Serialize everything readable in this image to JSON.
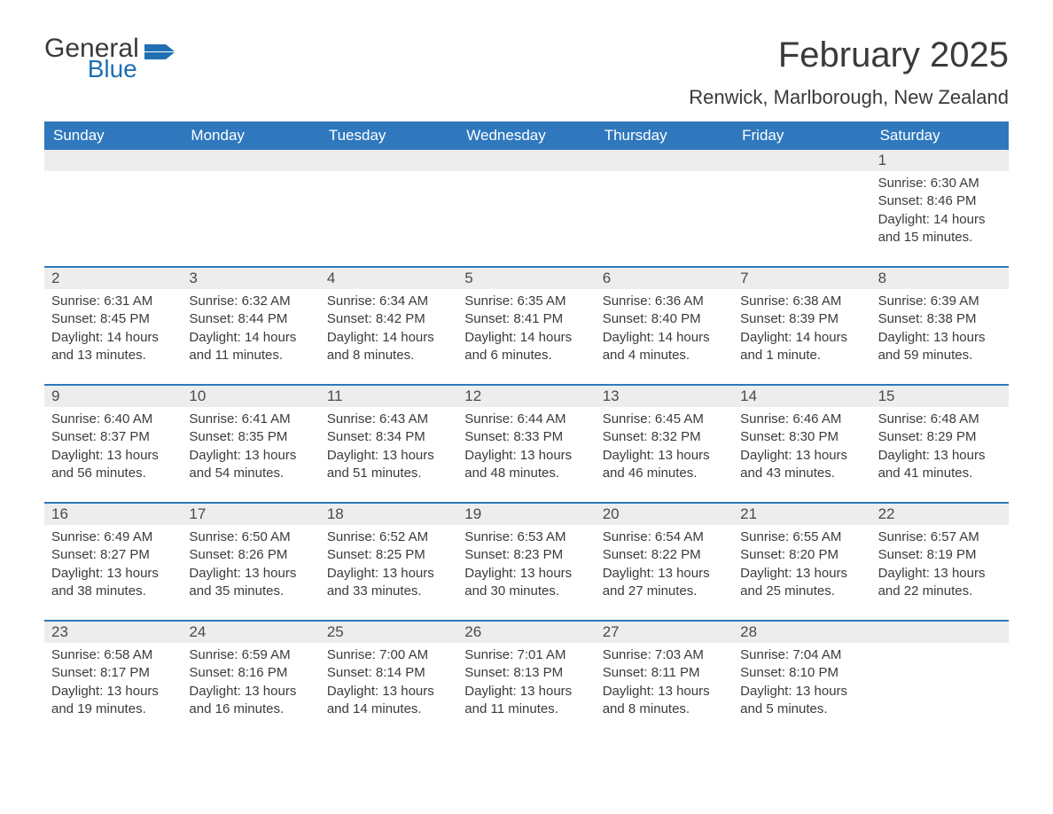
{
  "logo": {
    "word1": "General",
    "word2": "Blue",
    "flag_color": "#1f6fb2"
  },
  "title": "February 2025",
  "location": "Renwick, Marlborough, New Zealand",
  "colors": {
    "header_bg": "#2f78bd",
    "header_text": "#ffffff",
    "daynum_bg": "#ededed",
    "body_text": "#3b3b3b",
    "rule": "#2f78bd",
    "page_bg": "#ffffff"
  },
  "day_headers": [
    "Sunday",
    "Monday",
    "Tuesday",
    "Wednesday",
    "Thursday",
    "Friday",
    "Saturday"
  ],
  "weeks": [
    [
      {
        "n": "",
        "sunrise": "",
        "sunset": "",
        "daylight": ""
      },
      {
        "n": "",
        "sunrise": "",
        "sunset": "",
        "daylight": ""
      },
      {
        "n": "",
        "sunrise": "",
        "sunset": "",
        "daylight": ""
      },
      {
        "n": "",
        "sunrise": "",
        "sunset": "",
        "daylight": ""
      },
      {
        "n": "",
        "sunrise": "",
        "sunset": "",
        "daylight": ""
      },
      {
        "n": "",
        "sunrise": "",
        "sunset": "",
        "daylight": ""
      },
      {
        "n": "1",
        "sunrise": "Sunrise: 6:30 AM",
        "sunset": "Sunset: 8:46 PM",
        "daylight": "Daylight: 14 hours and 15 minutes."
      }
    ],
    [
      {
        "n": "2",
        "sunrise": "Sunrise: 6:31 AM",
        "sunset": "Sunset: 8:45 PM",
        "daylight": "Daylight: 14 hours and 13 minutes."
      },
      {
        "n": "3",
        "sunrise": "Sunrise: 6:32 AM",
        "sunset": "Sunset: 8:44 PM",
        "daylight": "Daylight: 14 hours and 11 minutes."
      },
      {
        "n": "4",
        "sunrise": "Sunrise: 6:34 AM",
        "sunset": "Sunset: 8:42 PM",
        "daylight": "Daylight: 14 hours and 8 minutes."
      },
      {
        "n": "5",
        "sunrise": "Sunrise: 6:35 AM",
        "sunset": "Sunset: 8:41 PM",
        "daylight": "Daylight: 14 hours and 6 minutes."
      },
      {
        "n": "6",
        "sunrise": "Sunrise: 6:36 AM",
        "sunset": "Sunset: 8:40 PM",
        "daylight": "Daylight: 14 hours and 4 minutes."
      },
      {
        "n": "7",
        "sunrise": "Sunrise: 6:38 AM",
        "sunset": "Sunset: 8:39 PM",
        "daylight": "Daylight: 14 hours and 1 minute."
      },
      {
        "n": "8",
        "sunrise": "Sunrise: 6:39 AM",
        "sunset": "Sunset: 8:38 PM",
        "daylight": "Daylight: 13 hours and 59 minutes."
      }
    ],
    [
      {
        "n": "9",
        "sunrise": "Sunrise: 6:40 AM",
        "sunset": "Sunset: 8:37 PM",
        "daylight": "Daylight: 13 hours and 56 minutes."
      },
      {
        "n": "10",
        "sunrise": "Sunrise: 6:41 AM",
        "sunset": "Sunset: 8:35 PM",
        "daylight": "Daylight: 13 hours and 54 minutes."
      },
      {
        "n": "11",
        "sunrise": "Sunrise: 6:43 AM",
        "sunset": "Sunset: 8:34 PM",
        "daylight": "Daylight: 13 hours and 51 minutes."
      },
      {
        "n": "12",
        "sunrise": "Sunrise: 6:44 AM",
        "sunset": "Sunset: 8:33 PM",
        "daylight": "Daylight: 13 hours and 48 minutes."
      },
      {
        "n": "13",
        "sunrise": "Sunrise: 6:45 AM",
        "sunset": "Sunset: 8:32 PM",
        "daylight": "Daylight: 13 hours and 46 minutes."
      },
      {
        "n": "14",
        "sunrise": "Sunrise: 6:46 AM",
        "sunset": "Sunset: 8:30 PM",
        "daylight": "Daylight: 13 hours and 43 minutes."
      },
      {
        "n": "15",
        "sunrise": "Sunrise: 6:48 AM",
        "sunset": "Sunset: 8:29 PM",
        "daylight": "Daylight: 13 hours and 41 minutes."
      }
    ],
    [
      {
        "n": "16",
        "sunrise": "Sunrise: 6:49 AM",
        "sunset": "Sunset: 8:27 PM",
        "daylight": "Daylight: 13 hours and 38 minutes."
      },
      {
        "n": "17",
        "sunrise": "Sunrise: 6:50 AM",
        "sunset": "Sunset: 8:26 PM",
        "daylight": "Daylight: 13 hours and 35 minutes."
      },
      {
        "n": "18",
        "sunrise": "Sunrise: 6:52 AM",
        "sunset": "Sunset: 8:25 PM",
        "daylight": "Daylight: 13 hours and 33 minutes."
      },
      {
        "n": "19",
        "sunrise": "Sunrise: 6:53 AM",
        "sunset": "Sunset: 8:23 PM",
        "daylight": "Daylight: 13 hours and 30 minutes."
      },
      {
        "n": "20",
        "sunrise": "Sunrise: 6:54 AM",
        "sunset": "Sunset: 8:22 PM",
        "daylight": "Daylight: 13 hours and 27 minutes."
      },
      {
        "n": "21",
        "sunrise": "Sunrise: 6:55 AM",
        "sunset": "Sunset: 8:20 PM",
        "daylight": "Daylight: 13 hours and 25 minutes."
      },
      {
        "n": "22",
        "sunrise": "Sunrise: 6:57 AM",
        "sunset": "Sunset: 8:19 PM",
        "daylight": "Daylight: 13 hours and 22 minutes."
      }
    ],
    [
      {
        "n": "23",
        "sunrise": "Sunrise: 6:58 AM",
        "sunset": "Sunset: 8:17 PM",
        "daylight": "Daylight: 13 hours and 19 minutes."
      },
      {
        "n": "24",
        "sunrise": "Sunrise: 6:59 AM",
        "sunset": "Sunset: 8:16 PM",
        "daylight": "Daylight: 13 hours and 16 minutes."
      },
      {
        "n": "25",
        "sunrise": "Sunrise: 7:00 AM",
        "sunset": "Sunset: 8:14 PM",
        "daylight": "Daylight: 13 hours and 14 minutes."
      },
      {
        "n": "26",
        "sunrise": "Sunrise: 7:01 AM",
        "sunset": "Sunset: 8:13 PM",
        "daylight": "Daylight: 13 hours and 11 minutes."
      },
      {
        "n": "27",
        "sunrise": "Sunrise: 7:03 AM",
        "sunset": "Sunset: 8:11 PM",
        "daylight": "Daylight: 13 hours and 8 minutes."
      },
      {
        "n": "28",
        "sunrise": "Sunrise: 7:04 AM",
        "sunset": "Sunset: 8:10 PM",
        "daylight": "Daylight: 13 hours and 5 minutes."
      },
      {
        "n": "",
        "sunrise": "",
        "sunset": "",
        "daylight": ""
      }
    ]
  ]
}
